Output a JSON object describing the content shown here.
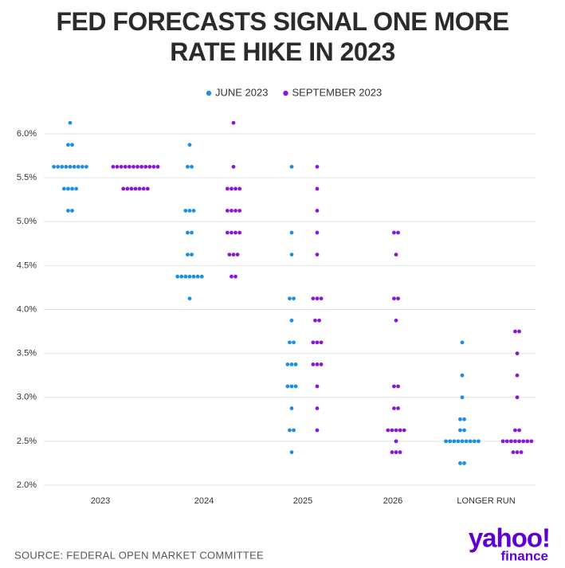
{
  "chart_data": {
    "type": "dot",
    "title": "FED FORECASTS SIGNAL ONE MORE RATE HIKE IN 2023",
    "source": "SOURCE: FEDERAL OPEN MARKET COMMITTEE",
    "logo": {
      "brand": "yahoo!",
      "sub": "finance"
    },
    "categories": [
      "2023",
      "2024",
      "2025",
      "2026",
      "LONGER RUN"
    ],
    "ylim": [
      2.0,
      6.0
    ],
    "yticks": [
      {
        "value": 2.0,
        "label": "2.0%"
      },
      {
        "value": 2.5,
        "label": "2.5%"
      },
      {
        "value": 3.0,
        "label": "3.0%"
      },
      {
        "value": 3.5,
        "label": "3.5%"
      },
      {
        "value": 4.0,
        "label": "4.0%"
      },
      {
        "value": 4.5,
        "label": "4.5%"
      },
      {
        "value": 5.0,
        "label": "5.0%"
      },
      {
        "value": 5.5,
        "label": "5.5%"
      },
      {
        "value": 6.0,
        "label": "6.0%"
      }
    ],
    "grid": true,
    "legend": "top",
    "series": [
      {
        "name": "JUNE 2023",
        "color": "#1a8fe3",
        "values": [
          [
            6.125,
            5.875,
            5.875,
            5.625,
            5.625,
            5.625,
            5.625,
            5.625,
            5.625,
            5.625,
            5.625,
            5.625,
            5.375,
            5.375,
            5.375,
            5.375,
            5.125,
            5.125
          ],
          [
            5.875,
            5.625,
            5.625,
            5.125,
            5.125,
            5.125,
            4.875,
            4.875,
            4.625,
            4.625,
            4.375,
            4.375,
            4.375,
            4.375,
            4.375,
            4.375,
            4.375,
            4.125
          ],
          [
            5.625,
            4.875,
            4.625,
            4.125,
            4.125,
            3.875,
            3.625,
            3.625,
            3.375,
            3.375,
            3.375,
            3.125,
            3.125,
            3.125,
            2.875,
            2.625,
            2.625,
            2.375
          ],
          [],
          [
            3.625,
            3.25,
            3.0,
            2.75,
            2.75,
            2.625,
            2.625,
            2.5,
            2.5,
            2.5,
            2.5,
            2.5,
            2.5,
            2.5,
            2.5,
            2.5,
            2.25,
            2.25
          ]
        ]
      },
      {
        "name": "SEPTEMBER 2023",
        "color": "#8a16d9",
        "values": [
          [
            5.625,
            5.625,
            5.625,
            5.625,
            5.625,
            5.625,
            5.625,
            5.625,
            5.625,
            5.625,
            5.625,
            5.625,
            5.375,
            5.375,
            5.375,
            5.375,
            5.375,
            5.375,
            5.375
          ],
          [
            6.125,
            5.625,
            5.375,
            5.375,
            5.375,
            5.375,
            5.125,
            5.125,
            5.125,
            5.125,
            4.875,
            4.875,
            4.875,
            4.875,
            4.625,
            4.625,
            4.625,
            4.375,
            4.375
          ],
          [
            5.625,
            5.375,
            5.125,
            4.875,
            4.625,
            4.125,
            4.125,
            4.125,
            3.875,
            3.875,
            3.625,
            3.625,
            3.625,
            3.375,
            3.375,
            3.375,
            3.125,
            2.875,
            2.625
          ],
          [
            4.875,
            4.875,
            4.625,
            4.125,
            4.125,
            3.875,
            3.125,
            3.125,
            2.875,
            2.875,
            2.625,
            2.625,
            2.625,
            2.625,
            2.625,
            2.5,
            2.375,
            2.375,
            2.375
          ],
          [
            3.75,
            3.75,
            3.5,
            3.25,
            3.0,
            2.625,
            2.625,
            2.5,
            2.5,
            2.5,
            2.5,
            2.5,
            2.5,
            2.5,
            2.5,
            2.375,
            2.375,
            2.375
          ]
        ]
      }
    ]
  }
}
